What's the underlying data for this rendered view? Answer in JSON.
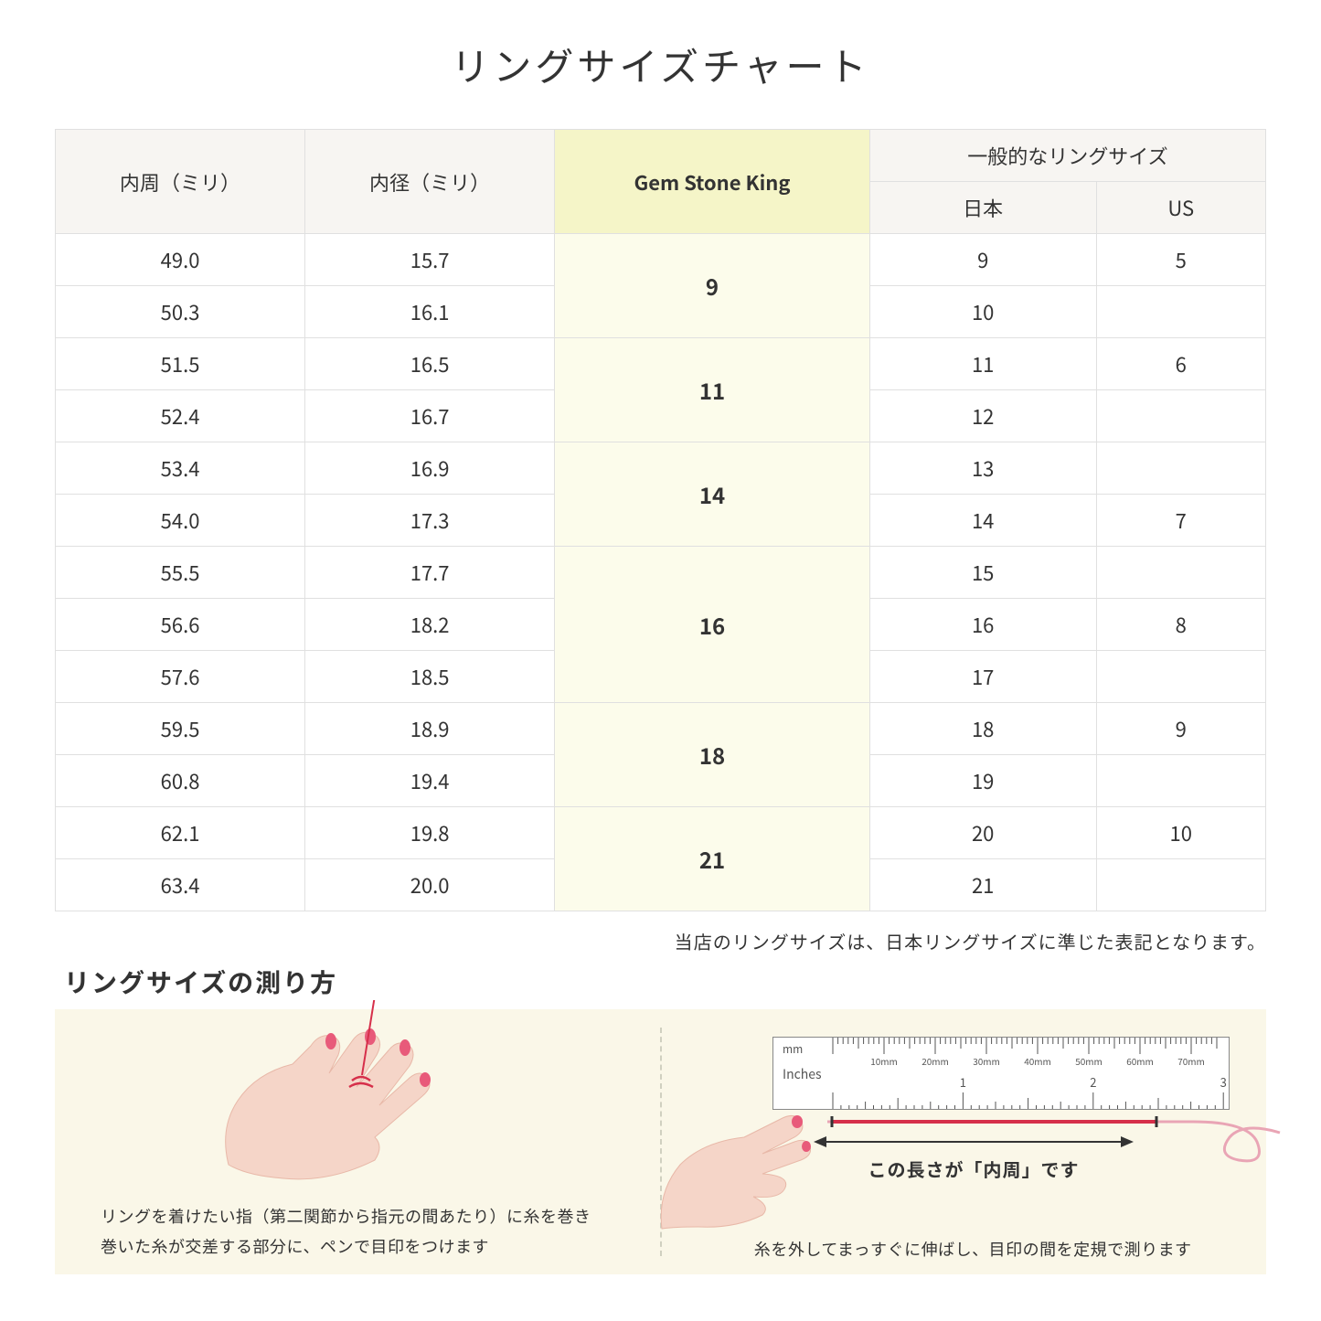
{
  "title": "リングサイズチャート",
  "headers": {
    "circumference": "内周（ミリ）",
    "diameter": "内径（ミリ）",
    "gsk": "Gem Stone King",
    "general": "一般的なリングサイズ",
    "japan": "日本",
    "us": "US"
  },
  "rows": [
    {
      "circ": "49.0",
      "dia": "15.7",
      "jp": "9",
      "us": "5"
    },
    {
      "circ": "50.3",
      "dia": "16.1",
      "jp": "10",
      "us": ""
    },
    {
      "circ": "51.5",
      "dia": "16.5",
      "jp": "11",
      "us": "6"
    },
    {
      "circ": "52.4",
      "dia": "16.7",
      "jp": "12",
      "us": ""
    },
    {
      "circ": "53.4",
      "dia": "16.9",
      "jp": "13",
      "us": ""
    },
    {
      "circ": "54.0",
      "dia": "17.3",
      "jp": "14",
      "us": "7"
    },
    {
      "circ": "55.5",
      "dia": "17.7",
      "jp": "15",
      "us": ""
    },
    {
      "circ": "56.6",
      "dia": "18.2",
      "jp": "16",
      "us": "8"
    },
    {
      "circ": "57.6",
      "dia": "18.5",
      "jp": "17",
      "us": ""
    },
    {
      "circ": "59.5",
      "dia": "18.9",
      "jp": "18",
      "us": "9"
    },
    {
      "circ": "60.8",
      "dia": "19.4",
      "jp": "19",
      "us": ""
    },
    {
      "circ": "62.1",
      "dia": "19.8",
      "jp": "20",
      "us": "10"
    },
    {
      "circ": "63.4",
      "dia": "20.0",
      "jp": "21",
      "us": ""
    }
  ],
  "gsk_groups": [
    {
      "label": "9",
      "span": 2
    },
    {
      "label": "11",
      "span": 2
    },
    {
      "label": "14",
      "span": 2
    },
    {
      "label": "16",
      "span": 3
    },
    {
      "label": "18",
      "span": 2
    },
    {
      "label": "21",
      "span": 2
    }
  ],
  "note": "当店のリングサイズは、日本リングサイズに準じた表記となります。",
  "howto": {
    "title": "リングサイズの測り方",
    "left_caption_1": "リングを着けたい指（第二関節から指元の間あたり）に糸を巻き",
    "left_caption_2": "巻いた糸が交差する部分に、ペンで目印をつけます",
    "right_caption": "糸を外してまっすぐに伸ばし、目印の間を定規で測ります",
    "arrow_label": "この長さが「内周」です",
    "ruler_mm": "mm",
    "ruler_in": "Inches",
    "ruler_mm_ticks": [
      "10mm",
      "20mm",
      "30mm",
      "40mm",
      "50mm",
      "60mm",
      "70mm"
    ],
    "ruler_in_ticks": [
      "1",
      "2"
    ]
  },
  "colors": {
    "header_bg": "#f7f5f2",
    "gsk_header_bg": "#f5f5c8",
    "gsk_cell_bg": "#fcfceb",
    "border": "#e0e0e0",
    "howto_bg": "#faf7e8",
    "skin": "#f5d5c8",
    "nail": "#e85a7a",
    "thread": "#d62f4a"
  }
}
